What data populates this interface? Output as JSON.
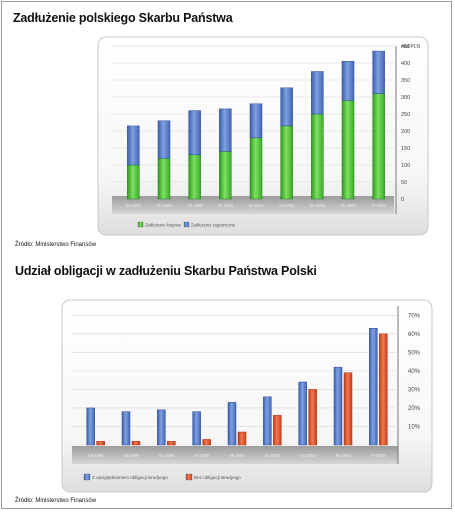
{
  "title1": "Zadłużenie polskiego Skarbu Państwa",
  "title2": "Udział obligacji w zadłużeniu Skarbu Państwa Polski",
  "source1": "Źródło: Ministerstwo Finansów",
  "source2": "Źródło: Ministerstwo Finansów",
  "colors": {
    "domestic": "#4fc43a",
    "foreign": "#5a7fc8",
    "with_brady": "#5a7fc8",
    "without_brady": "#e0532a"
  },
  "chart_data": [
    {
      "type": "bar",
      "stacked": true,
      "unit_label": "mld PLN",
      "categories": [
        "XII 1997",
        "XII 1998",
        "XII 1999",
        "XII 2000",
        "XII 2001",
        "XII 2002",
        "XII 2003",
        "XII 2004",
        "VI 2005"
      ],
      "series": [
        {
          "name": "Zadłużenie krajowe",
          "values": [
            100,
            120,
            130,
            140,
            180,
            215,
            250,
            290,
            310
          ]
        },
        {
          "name": "Zadłużenie zagraniczne",
          "values": [
            115,
            110,
            130,
            125,
            100,
            112,
            125,
            115,
            125
          ]
        }
      ],
      "ylim": [
        0,
        450
      ],
      "yticks": [
        "0",
        "50",
        "100",
        "150",
        "200",
        "250",
        "300",
        "350",
        "400",
        "450"
      ],
      "grid": true,
      "legend": "bottom-left"
    },
    {
      "type": "bar",
      "stacked": false,
      "categories": [
        "XII 1997",
        "XII 1998",
        "XII 1999",
        "XII 2000",
        "XII 2001",
        "XII 2002",
        "XII 2003",
        "XII 2004",
        "VI 2005"
      ],
      "series": [
        {
          "name": "Z uwzględnieniem obligacji Bradyego",
          "values": [
            20,
            18,
            19,
            18,
            23,
            26,
            34,
            42,
            63
          ]
        },
        {
          "name": "Bez obligacji Bradyego",
          "values": [
            2,
            2,
            2,
            3,
            7,
            16,
            30,
            39,
            60
          ]
        }
      ],
      "ylim": [
        0,
        75
      ],
      "yticks": [
        "10%",
        "20%",
        "30%",
        "40%",
        "50%",
        "60%",
        "70%"
      ],
      "grid": true,
      "legend": "bottom-left"
    }
  ]
}
